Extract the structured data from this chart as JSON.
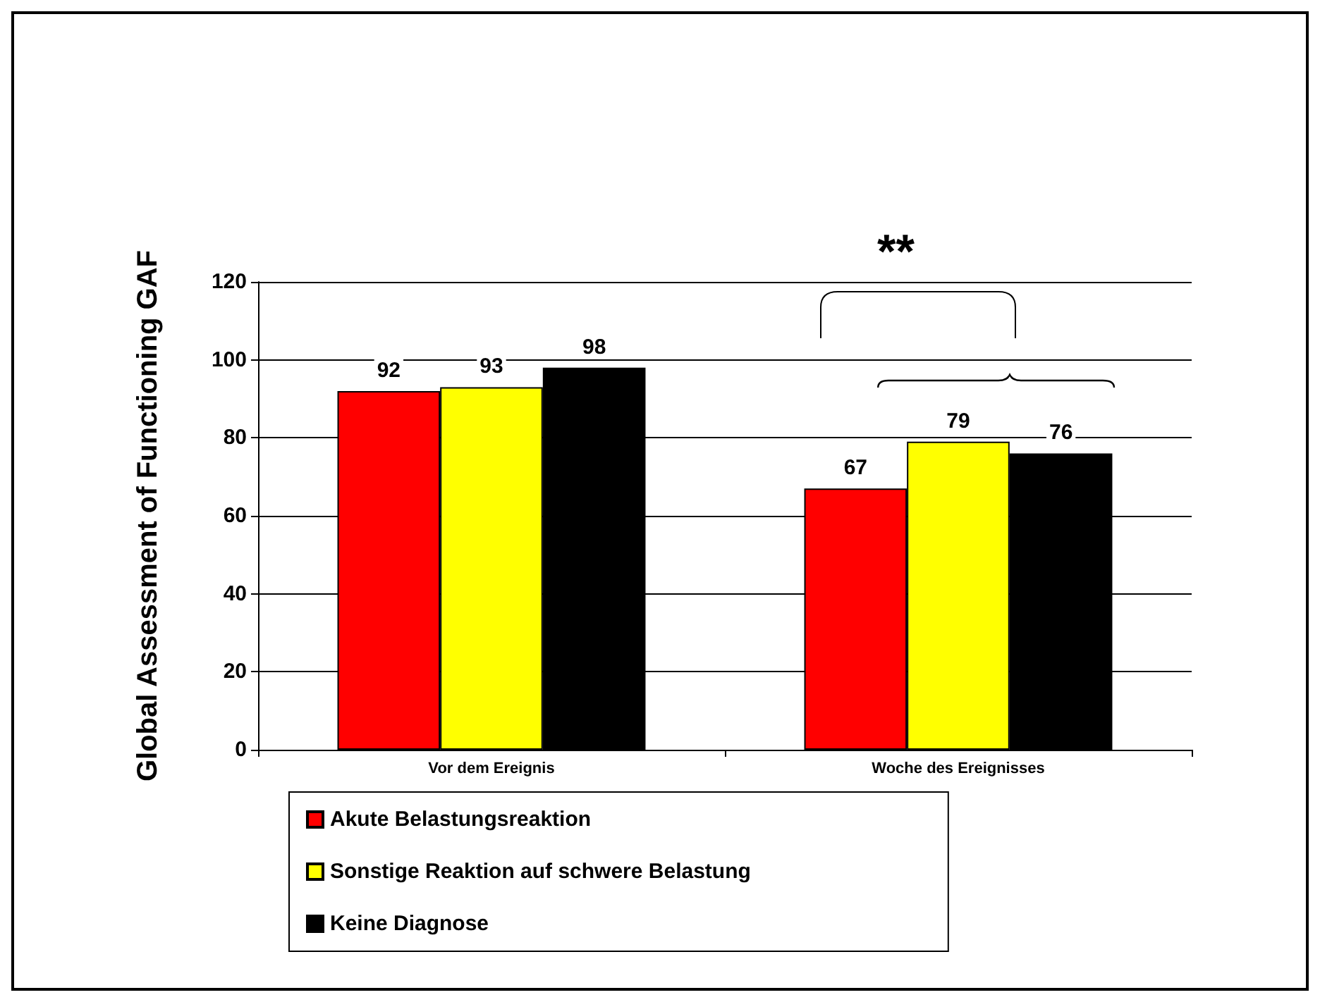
{
  "chart_data": {
    "type": "bar",
    "ylabel": "Global Assessment of Functioning GAF",
    "categories": [
      "Vor dem Ereignis",
      "Woche des Ereignisses"
    ],
    "series": [
      {
        "name": "Akute Belastungsreaktion",
        "color": "#ff0000",
        "values": [
          92,
          67
        ]
      },
      {
        "name": "Sonstige Reaktion auf schwere Belastung",
        "color": "#ffff00",
        "values": [
          93,
          79
        ]
      },
      {
        "name": "Keine Diagnose",
        "color": "#000000",
        "values": [
          98,
          76
        ]
      }
    ],
    "ylim": [
      0,
      120
    ],
    "yticks": [
      0,
      20,
      40,
      60,
      80,
      100,
      120
    ],
    "grid": "y",
    "legend": "bottom",
    "data_labels": true,
    "annotations": [
      "**"
    ]
  }
}
